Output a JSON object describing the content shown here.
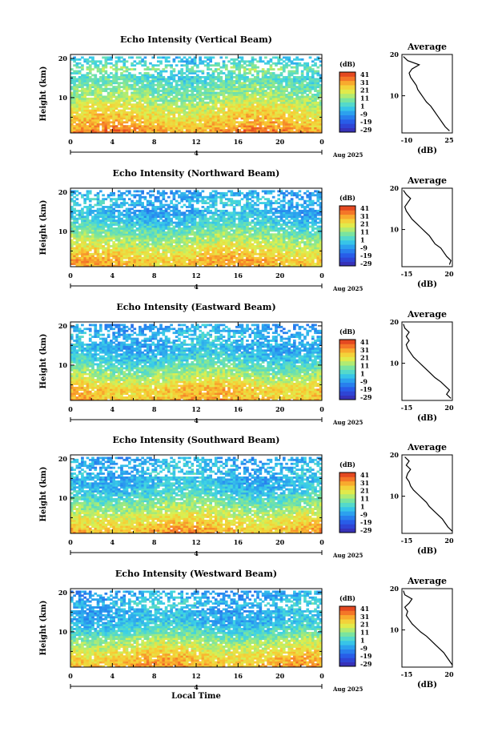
{
  "chart_data": [
    {
      "type": "heatmap",
      "title": "Echo Intensity (Vertical Beam)",
      "ylabel": "Height (km)",
      "x_ticks": [
        "0",
        "4",
        "8",
        "12",
        "16",
        "20",
        "0"
      ],
      "y_ticks": [
        "10",
        "20"
      ],
      "date_mark": "4",
      "date_label": "Aug 2025",
      "colorbar": {
        "label": "(dB)",
        "ticks": [
          "41",
          "31",
          "21",
          "11",
          "1",
          "-9",
          "-19",
          "-29"
        ],
        "range": [
          -29,
          41
        ]
      },
      "profile": {
        "title": "Average",
        "xlabel": "(dB)",
        "x_ticks": [
          "-10",
          "25"
        ],
        "xlim": [
          -10,
          25
        ],
        "y_ticks": [
          "10",
          "20"
        ],
        "ylim": [
          1,
          20
        ],
        "height_km": [
          1.5,
          2.5,
          3.5,
          4.5,
          5.5,
          6.5,
          7.5,
          8.5,
          9.5,
          10.5,
          11.5,
          12.5,
          13.5,
          14.5,
          15.5,
          16.5,
          17.5,
          18.5,
          19.5
        ],
        "avg_db": [
          23,
          20,
          18,
          16,
          14,
          12,
          10,
          7,
          5,
          3,
          1,
          0,
          -2,
          -4,
          -5,
          -3,
          2,
          -6,
          -9
        ]
      }
    },
    {
      "type": "heatmap",
      "title": "Echo Intensity (Northward Beam)",
      "ylabel": "Height (km)",
      "x_ticks": [
        "0",
        "4",
        "8",
        "12",
        "16",
        "20",
        "0"
      ],
      "y_ticks": [
        "10",
        "20"
      ],
      "date_mark": "4",
      "date_label": "Aug 2025",
      "colorbar": {
        "label": "(dB)",
        "ticks": [
          "41",
          "31",
          "21",
          "11",
          "1",
          "-9",
          "-19",
          "-29"
        ],
        "range": [
          -29,
          41
        ]
      },
      "profile": {
        "title": "Average",
        "xlabel": "(dB)",
        "x_ticks": [
          "-15",
          "20"
        ],
        "xlim": [
          -15,
          20
        ],
        "y_ticks": [
          "10",
          "20"
        ],
        "ylim": [
          1,
          20
        ],
        "height_km": [
          1.5,
          2.5,
          3.5,
          4.5,
          5.5,
          6.5,
          7.5,
          8.5,
          9.5,
          10.5,
          11.5,
          12.5,
          13.5,
          14.5,
          15.5,
          16.5,
          17.5,
          18.5,
          19.5
        ],
        "avg_db": [
          18,
          19,
          16,
          14,
          12,
          8,
          6,
          4,
          1,
          -2,
          -5,
          -8,
          -10,
          -12,
          -13,
          -11,
          -9,
          -12,
          -14
        ]
      }
    },
    {
      "type": "heatmap",
      "title": "Echo Intensity (Eastward Beam)",
      "ylabel": "Height (km)",
      "x_ticks": [
        "0",
        "4",
        "8",
        "12",
        "16",
        "20",
        "0"
      ],
      "y_ticks": [
        "10",
        "20"
      ],
      "date_mark": "4",
      "date_label": "Aug 2025",
      "colorbar": {
        "label": "(dB)",
        "ticks": [
          "41",
          "31",
          "21",
          "11",
          "1",
          "-9",
          "-19",
          "-29"
        ],
        "range": [
          -29,
          41
        ]
      },
      "profile": {
        "title": "Average",
        "xlabel": "(dB)",
        "x_ticks": [
          "-15",
          "20"
        ],
        "xlim": [
          -15,
          20
        ],
        "y_ticks": [
          "10",
          "20"
        ],
        "ylim": [
          1,
          20
        ],
        "height_km": [
          1.5,
          2.5,
          3.5,
          4.5,
          5.5,
          6.5,
          7.5,
          8.5,
          9.5,
          10.5,
          11.5,
          12.5,
          13.5,
          14.5,
          15.5,
          16.5,
          17.5,
          18.5,
          19.5
        ],
        "avg_db": [
          19,
          16,
          18,
          15,
          12,
          8,
          5,
          2,
          -1,
          -4,
          -7,
          -9,
          -11,
          -12,
          -10,
          -12,
          -10,
          -13,
          -14
        ]
      }
    },
    {
      "type": "heatmap",
      "title": "Echo Intensity (Southward Beam)",
      "ylabel": "Height (km)",
      "x_ticks": [
        "0",
        "4",
        "8",
        "12",
        "16",
        "20",
        "0"
      ],
      "y_ticks": [
        "10",
        "20"
      ],
      "date_mark": "4",
      "date_label": "Aug 2025",
      "colorbar": {
        "label": "(dB)",
        "ticks": [
          "41",
          "31",
          "21",
          "11",
          "1",
          "-9",
          "-19",
          "-29"
        ],
        "range": [
          -29,
          41
        ]
      },
      "profile": {
        "title": "Average",
        "xlabel": "(dB)",
        "x_ticks": [
          "-15",
          "20"
        ],
        "xlim": [
          -15,
          20
        ],
        "y_ticks": [
          "10",
          "20"
        ],
        "ylim": [
          1,
          20
        ],
        "height_km": [
          1.5,
          2.5,
          3.5,
          4.5,
          5.5,
          6.5,
          7.5,
          8.5,
          9.5,
          10.5,
          11.5,
          12.5,
          13.5,
          14.5,
          15.5,
          16.5,
          17.5,
          18.5,
          19.5
        ],
        "avg_db": [
          20,
          17,
          15,
          13,
          10,
          7,
          4,
          2,
          -1,
          -4,
          -7,
          -9,
          -10,
          -12,
          -11,
          -9,
          -12,
          -10,
          -13
        ]
      }
    },
    {
      "type": "heatmap",
      "title": "Echo Intensity (Westward Beam)",
      "ylabel": "Height (km)",
      "x_ticks": [
        "0",
        "4",
        "8",
        "12",
        "16",
        "20",
        "0"
      ],
      "y_ticks": [
        "10",
        "20"
      ],
      "date_mark": "4",
      "date_label": "Aug 2025",
      "xlabel": "Local Time",
      "colorbar": {
        "label": "(dB)",
        "ticks": [
          "41",
          "31",
          "21",
          "11",
          "1",
          "-9",
          "-19",
          "-29"
        ],
        "range": [
          -29,
          41
        ]
      },
      "profile": {
        "title": "Average",
        "xlabel": "(dB)",
        "x_ticks": [
          "-15",
          "20"
        ],
        "xlim": [
          -15,
          20
        ],
        "y_ticks": [
          "10",
          "20"
        ],
        "ylim": [
          1,
          20
        ],
        "height_km": [
          1.5,
          2.5,
          3.5,
          4.5,
          5.5,
          6.5,
          7.5,
          8.5,
          9.5,
          10.5,
          11.5,
          12.5,
          13.5,
          14.5,
          15.5,
          16.5,
          17.5,
          18.5,
          19.5
        ],
        "avg_db": [
          20,
          18,
          16,
          14,
          11,
          8,
          5,
          2,
          -2,
          -5,
          -8,
          -10,
          -12,
          -11,
          -13,
          -10,
          -8,
          -13,
          -14
        ]
      }
    }
  ]
}
